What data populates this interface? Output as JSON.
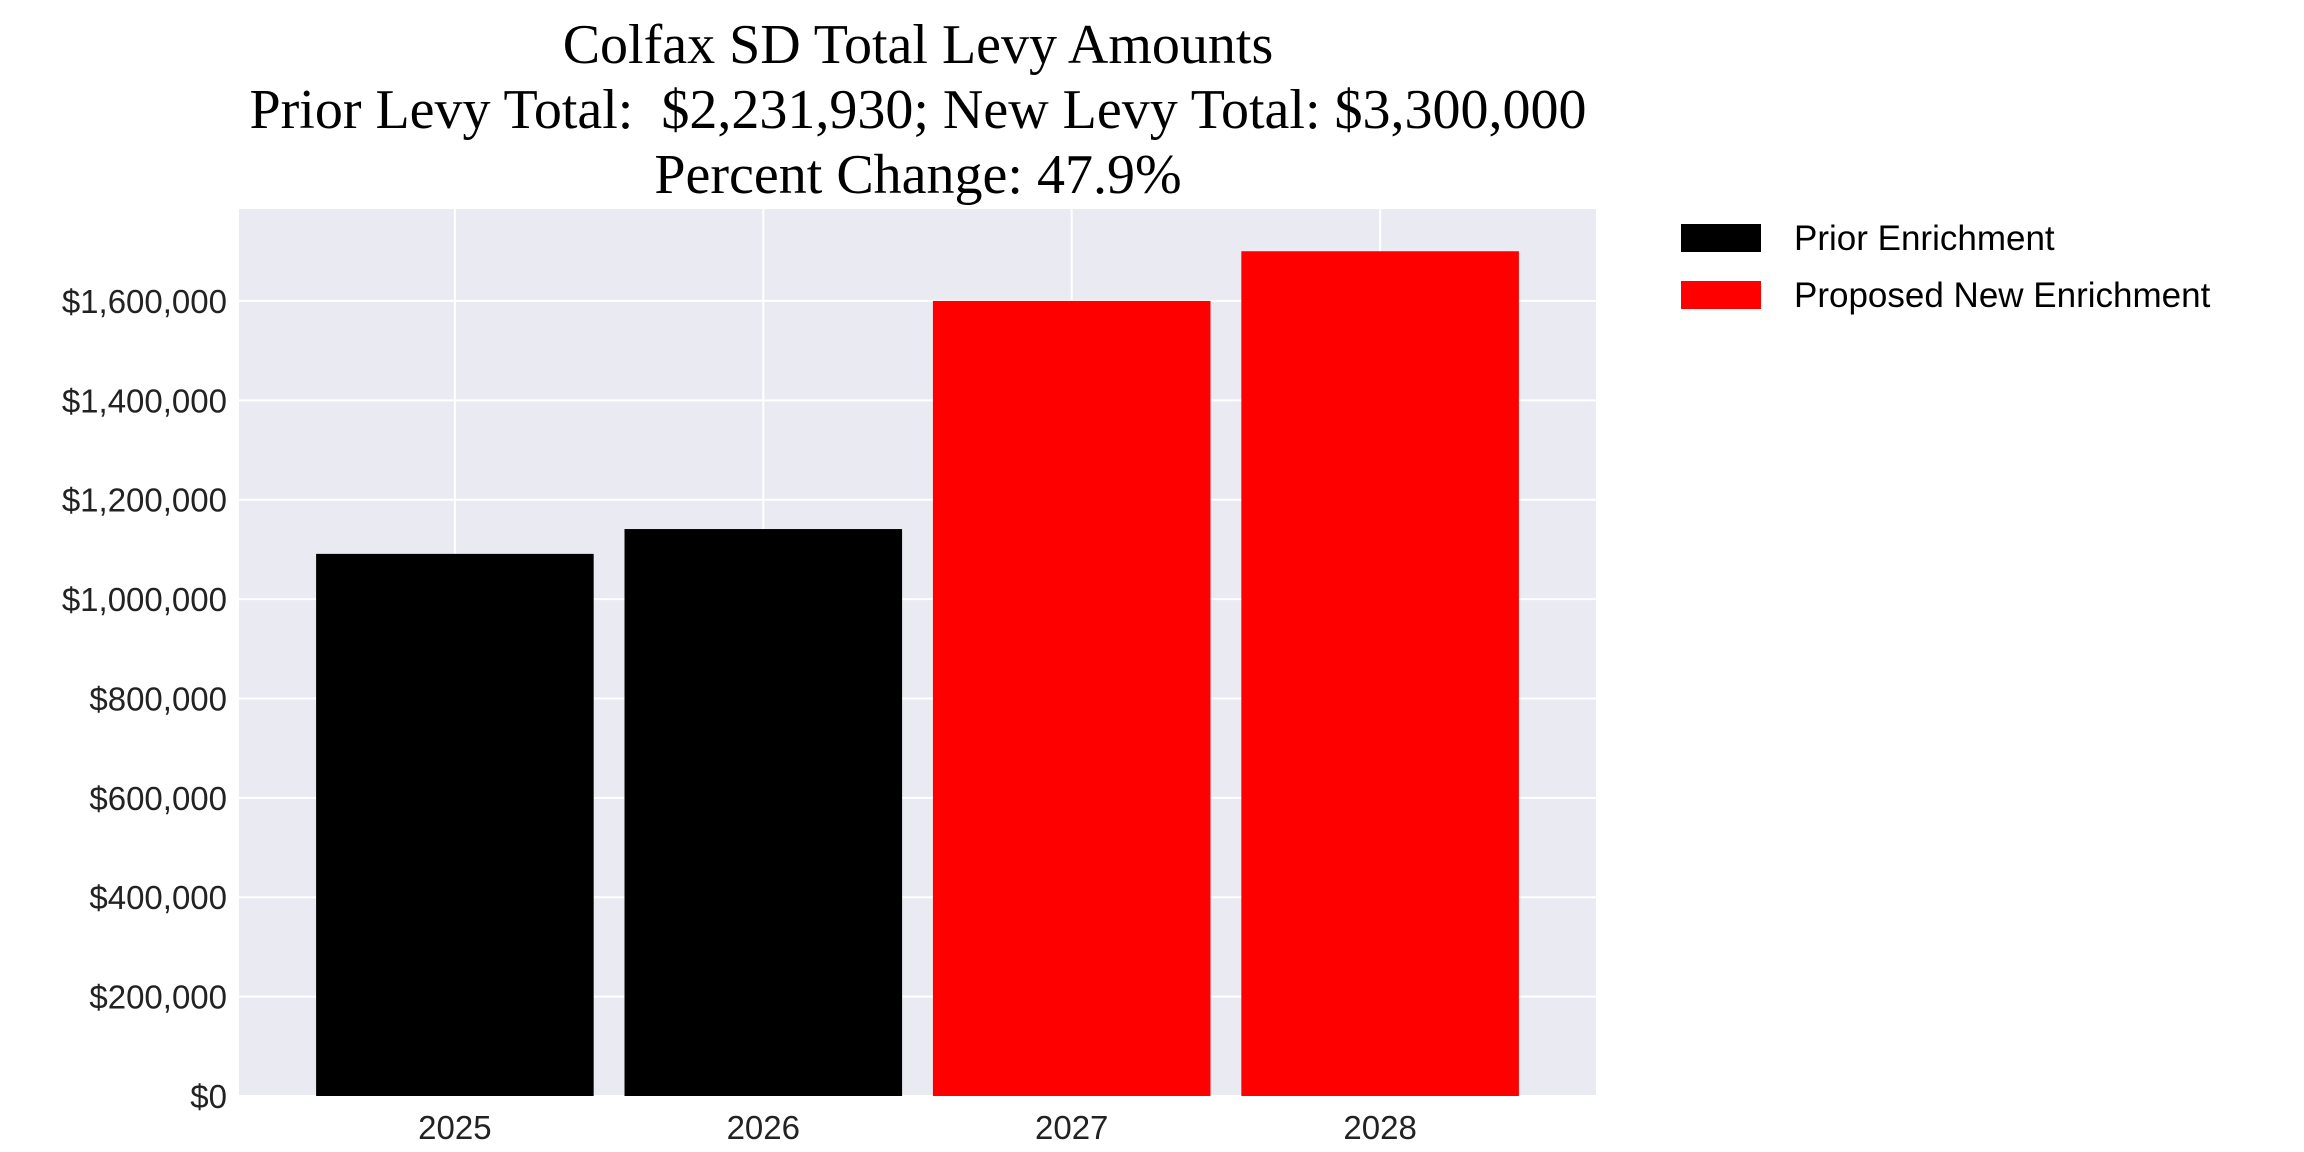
{
  "chart_data": {
    "type": "bar",
    "title": "Colfax SD Total Levy Amounts",
    "subtitle_lines": [
      "Prior Levy Total:  $2,231,930; New Levy Total: $3,300,000",
      "Percent Change: 47.9%"
    ],
    "xlabel": "",
    "ylabel": "",
    "categories": [
      "2025",
      "2026",
      "2027",
      "2028"
    ],
    "series": [
      {
        "name": "Prior Enrichment",
        "color": "#000000",
        "values": [
          1091000,
          1140930,
          null,
          null
        ]
      },
      {
        "name": "Proposed New Enrichment",
        "color": "#ff0000",
        "values": [
          null,
          null,
          1600000,
          1700000
        ]
      }
    ],
    "ylim": [
      0,
      1785000
    ],
    "yticks": [
      0,
      200000,
      400000,
      600000,
      800000,
      1000000,
      1200000,
      1400000,
      1600000
    ],
    "ytick_labels": [
      "$0",
      "$200,000",
      "$400,000",
      "$600,000",
      "$800,000",
      "$1,000,000",
      "$1,200,000",
      "$1,400,000",
      "$1,600,000"
    ],
    "grid": true,
    "background": "#eaeaf2",
    "legend_position": "outside-right-top"
  }
}
